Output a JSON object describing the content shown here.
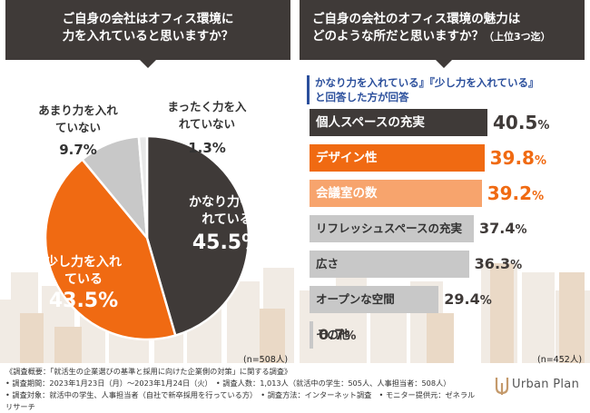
{
  "left_panel": {
    "title_line1": "ご自身の会社はオフィス環境に",
    "title_line2": "力を入れていると思いますか？",
    "n_note": "(n=508人)"
  },
  "right_panel": {
    "title_line1": "ご自身の会社のオフィス環境の魅力は",
    "title_line2": "どのような所だと思いますか？",
    "title_suffix": "（上位3つ迄）",
    "note_line1": "かなり力を入れている』『少し力を入れている』",
    "note_line2": "と回答した方が回答",
    "n_note": "(n=452人)"
  },
  "chart_data": [
    {
      "type": "pie",
      "title": "ご自身の会社はオフィス環境に力を入れていると思いますか？",
      "slices": [
        {
          "label": "かなり力を入れている",
          "value": 45.5,
          "color": "#3f3a38"
        },
        {
          "label": "少し力を入れている",
          "value": 43.5,
          "color": "#f06a12"
        },
        {
          "label": "あまり力を入れていない",
          "value": 9.7,
          "color": "#c8c8c8"
        },
        {
          "label": "まったく力を入れていない",
          "value": 1.3,
          "color": "#e8e8e8"
        }
      ],
      "value_suffix": "%"
    },
    {
      "type": "bar",
      "orientation": "horizontal",
      "title": "ご自身の会社のオフィス環境の魅力はどのような所だと思いますか？（上位3つ迄）",
      "xlim": [
        0,
        40.5
      ],
      "categories": [
        "個人スペースの充実",
        "デザイン性",
        "会議室の数",
        "リフレッシュスペースの充実",
        "広さ",
        "オープンな空間",
        "その他"
      ],
      "values": [
        40.5,
        39.8,
        39.2,
        37.4,
        36.3,
        29.4,
        0.7
      ],
      "bar_colors": [
        "#3f3a38",
        "#f06a12",
        "#f7a46d",
        "#c8c8c8",
        "#c8c8c8",
        "#c8c8c8",
        "#c8c8c8"
      ],
      "value_colors": [
        "#3f3a38",
        "#f06a12",
        "#f06a12",
        "#3f3a38",
        "#3f3a38",
        "#3f3a38",
        "#3f3a38"
      ],
      "value_suffix": "%"
    }
  ],
  "footer": {
    "line1": "《調査概要：「就活生の企業選びの基準と採用に向けた企業側の対策」に関する調査》",
    "line2": "• 調査期間：2023年1月23日（月）～2023年1月24日（火）　• 調査人数：1,013人（就活中の学生：505人、人事担当者：508人）",
    "line3": "• 調査対象：就活中の学生、人事担当者（自社で新卒採用を行っている方）　• 調査方法：インターネット調査　• モニター提供元：ゼネラルリサーチ"
  },
  "brand": {
    "name": "Urban Plan",
    "accent": "#c49a6c"
  }
}
